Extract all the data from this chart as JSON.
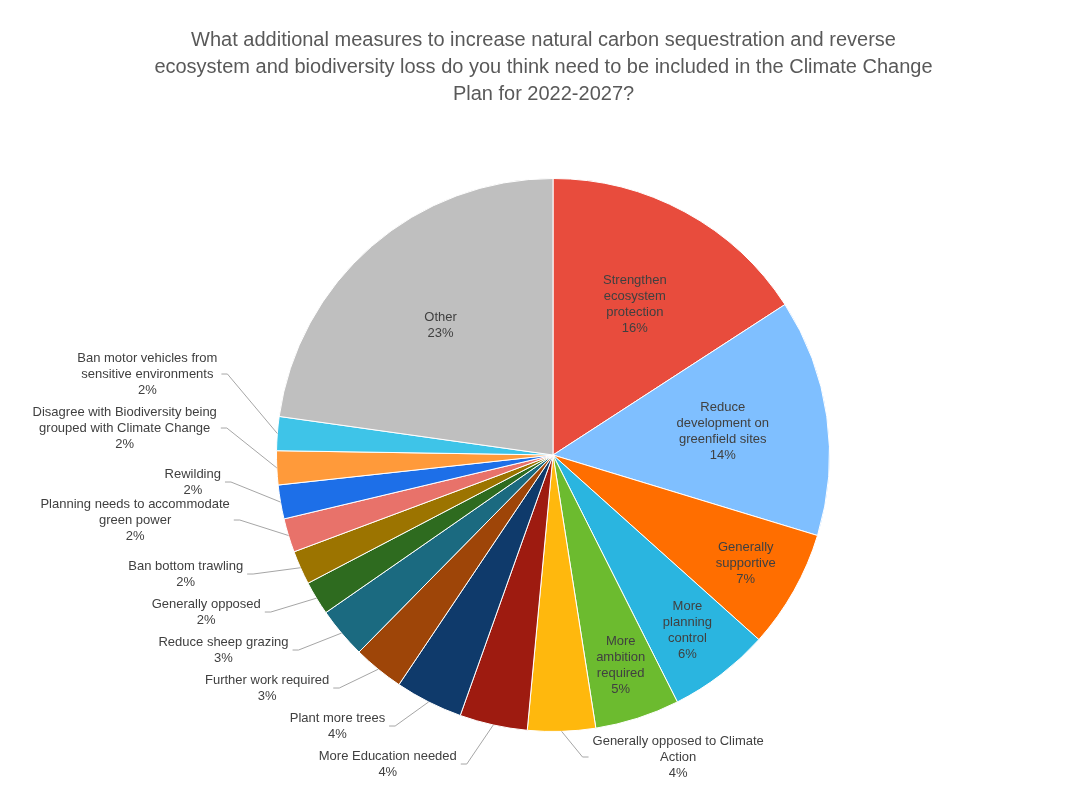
{
  "chart_data": {
    "type": "pie",
    "title": "What additional measures to increase natural carbon sequestration and reverse ecosystem and biodiversity loss do you think need to be included in the Climate Change Plan for 2022-2027?",
    "categories": [
      "Strengthen ecosystem protection",
      "Reduce development on greenfield sites",
      "Generally supportive",
      "More planning control",
      "More ambition required",
      "Generally opposed to Climate Action",
      "More Education needed",
      "Plant more trees",
      "Further work required",
      "Reduce sheep grazing",
      "Generally opposed",
      "Ban bottom trawling",
      "Planning needs to accommodate green power",
      "Rewilding",
      "Disagree with Biodiversity being grouped with Climate Change",
      "Ban motor vehicles from sensitive environments",
      "Other"
    ],
    "values": [
      16,
      14,
      7,
      6,
      5,
      4,
      4,
      4,
      3,
      3,
      2,
      2,
      2,
      2,
      2,
      2,
      23
    ],
    "value_labels": [
      "16%",
      "14%",
      "7%",
      "6%",
      "5%",
      "4%",
      "4%",
      "4%",
      "3%",
      "3%",
      "2%",
      "2%",
      "2%",
      "2%",
      "2%",
      "2%",
      "23%"
    ],
    "colors": [
      "#e84c3d",
      "#7fbfff",
      "#ff6e00",
      "#2ab5e0",
      "#6cbb2f",
      "#ffb80d",
      "#9e1b10",
      "#0f3a6b",
      "#9e4508",
      "#1b6a80",
      "#2e6b1f",
      "#9c7400",
      "#e8726a",
      "#1d6fe8",
      "#ff9a3a",
      "#3ec4e8",
      "#bfbfbf"
    ],
    "legend": false
  }
}
